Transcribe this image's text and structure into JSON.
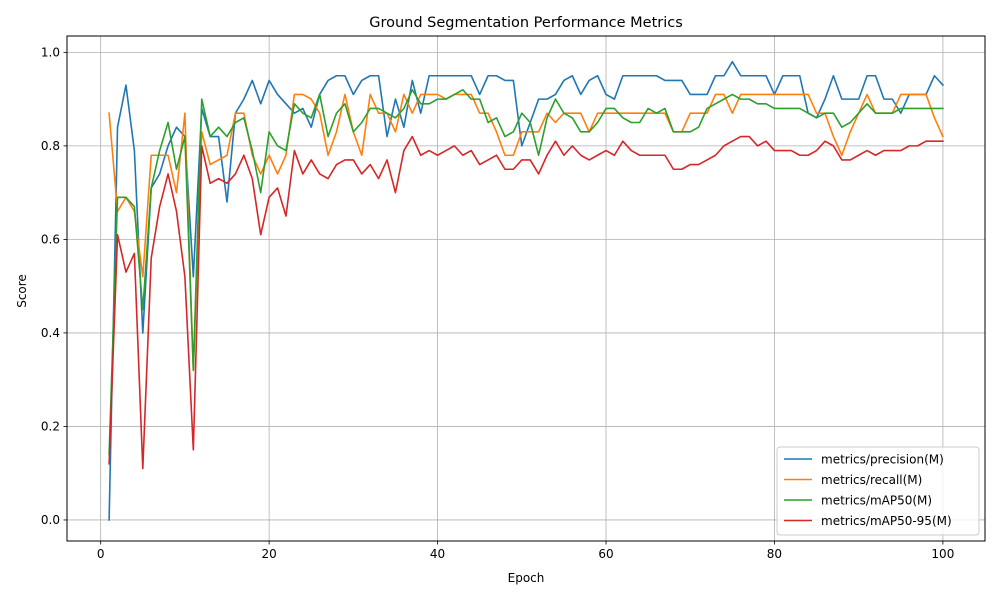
{
  "chart_data": {
    "type": "line",
    "title": "Ground Segmentation Performance Metrics",
    "xlabel": "Epoch",
    "ylabel": "Score",
    "xlim": [
      -4,
      105
    ],
    "ylim": [
      -0.045,
      1.035
    ],
    "xticks": [
      0,
      20,
      40,
      60,
      80,
      100
    ],
    "yticks": [
      0.0,
      0.2,
      0.4,
      0.6,
      0.8,
      1.0
    ],
    "xtick_labels": [
      "0",
      "20",
      "40",
      "60",
      "80",
      "100"
    ],
    "ytick_labels": [
      "0.0",
      "0.2",
      "0.4",
      "0.6",
      "0.8",
      "1.0"
    ],
    "grid": true,
    "legend_position": "lower-right",
    "x": [
      1,
      2,
      3,
      4,
      5,
      6,
      7,
      8,
      9,
      10,
      11,
      12,
      13,
      14,
      15,
      16,
      17,
      18,
      19,
      20,
      21,
      22,
      23,
      24,
      25,
      26,
      27,
      28,
      29,
      30,
      31,
      32,
      33,
      34,
      35,
      36,
      37,
      38,
      39,
      40,
      41,
      42,
      43,
      44,
      45,
      46,
      47,
      48,
      49,
      50,
      51,
      52,
      53,
      54,
      55,
      56,
      57,
      58,
      59,
      60,
      61,
      62,
      63,
      64,
      65,
      66,
      67,
      68,
      69,
      70,
      71,
      72,
      73,
      74,
      75,
      76,
      77,
      78,
      79,
      80,
      81,
      82,
      83,
      84,
      85,
      86,
      87,
      88,
      89,
      90,
      91,
      92,
      93,
      94,
      95,
      96,
      97,
      98,
      99,
      100
    ],
    "series": [
      {
        "name": "metrics/precision(M)",
        "color": "#1f77b4",
        "values": [
          0.0,
          0.84,
          0.93,
          0.79,
          0.4,
          0.71,
          0.74,
          0.8,
          0.84,
          0.82,
          0.52,
          0.88,
          0.82,
          0.82,
          0.68,
          0.87,
          0.9,
          0.94,
          0.89,
          0.94,
          0.91,
          0.89,
          0.87,
          0.88,
          0.84,
          0.91,
          0.94,
          0.95,
          0.95,
          0.91,
          0.94,
          0.95,
          0.95,
          0.82,
          0.9,
          0.84,
          0.94,
          0.87,
          0.95,
          0.95,
          0.95,
          0.95,
          0.95,
          0.95,
          0.91,
          0.95,
          0.95,
          0.94,
          0.94,
          0.8,
          0.85,
          0.9,
          0.9,
          0.91,
          0.94,
          0.95,
          0.91,
          0.94,
          0.95,
          0.91,
          0.9,
          0.95,
          0.95,
          0.95,
          0.95,
          0.95,
          0.94,
          0.94,
          0.94,
          0.91,
          0.91,
          0.91,
          0.95,
          0.95,
          0.98,
          0.95,
          0.95,
          0.95,
          0.95,
          0.91,
          0.95,
          0.95,
          0.95,
          0.87,
          0.86,
          0.9,
          0.95,
          0.9,
          0.9,
          0.9,
          0.95,
          0.95,
          0.9,
          0.9,
          0.87,
          0.91,
          0.91,
          0.91,
          0.95,
          0.93
        ]
      },
      {
        "name": "metrics/recall(M)",
        "color": "#ff7f0e",
        "values": [
          0.87,
          0.66,
          0.69,
          0.66,
          0.52,
          0.78,
          0.78,
          0.78,
          0.7,
          0.87,
          0.32,
          0.83,
          0.76,
          0.77,
          0.78,
          0.87,
          0.87,
          0.78,
          0.74,
          0.78,
          0.74,
          0.78,
          0.91,
          0.91,
          0.9,
          0.87,
          0.78,
          0.83,
          0.91,
          0.83,
          0.78,
          0.91,
          0.87,
          0.87,
          0.83,
          0.91,
          0.87,
          0.91,
          0.91,
          0.91,
          0.9,
          0.91,
          0.91,
          0.91,
          0.87,
          0.87,
          0.83,
          0.78,
          0.78,
          0.83,
          0.83,
          0.83,
          0.87,
          0.85,
          0.87,
          0.87,
          0.87,
          0.83,
          0.87,
          0.87,
          0.87,
          0.87,
          0.87,
          0.87,
          0.87,
          0.87,
          0.87,
          0.83,
          0.83,
          0.87,
          0.87,
          0.87,
          0.91,
          0.91,
          0.87,
          0.91,
          0.91,
          0.91,
          0.91,
          0.91,
          0.91,
          0.91,
          0.91,
          0.91,
          0.87,
          0.87,
          0.82,
          0.78,
          0.83,
          0.87,
          0.91,
          0.87,
          0.87,
          0.87,
          0.91,
          0.91,
          0.91,
          0.91,
          0.86,
          0.82
        ]
      },
      {
        "name": "metrics/mAP50(M)",
        "color": "#2ca02c",
        "values": [
          0.14,
          0.69,
          0.69,
          0.67,
          0.45,
          0.71,
          0.79,
          0.85,
          0.75,
          0.82,
          0.32,
          0.9,
          0.82,
          0.84,
          0.82,
          0.85,
          0.86,
          0.79,
          0.7,
          0.83,
          0.8,
          0.79,
          0.89,
          0.87,
          0.86,
          0.91,
          0.82,
          0.87,
          0.89,
          0.83,
          0.85,
          0.88,
          0.88,
          0.87,
          0.86,
          0.88,
          0.92,
          0.89,
          0.89,
          0.9,
          0.9,
          0.91,
          0.92,
          0.9,
          0.9,
          0.85,
          0.86,
          0.82,
          0.83,
          0.87,
          0.85,
          0.78,
          0.86,
          0.9,
          0.87,
          0.86,
          0.83,
          0.83,
          0.85,
          0.88,
          0.88,
          0.86,
          0.85,
          0.85,
          0.88,
          0.87,
          0.88,
          0.83,
          0.83,
          0.83,
          0.84,
          0.88,
          0.89,
          0.9,
          0.91,
          0.9,
          0.9,
          0.89,
          0.89,
          0.88,
          0.88,
          0.88,
          0.88,
          0.87,
          0.86,
          0.87,
          0.87,
          0.84,
          0.85,
          0.87,
          0.89,
          0.87,
          0.87,
          0.87,
          0.88,
          0.88,
          0.88,
          0.88,
          0.88,
          0.88
        ]
      },
      {
        "name": "metrics/mAP50-95(M)",
        "color": "#d62728",
        "values": [
          0.12,
          0.61,
          0.53,
          0.57,
          0.11,
          0.56,
          0.67,
          0.74,
          0.66,
          0.52,
          0.15,
          0.8,
          0.72,
          0.73,
          0.72,
          0.74,
          0.78,
          0.73,
          0.61,
          0.69,
          0.71,
          0.65,
          0.79,
          0.74,
          0.77,
          0.74,
          0.73,
          0.76,
          0.77,
          0.77,
          0.74,
          0.76,
          0.73,
          0.77,
          0.7,
          0.79,
          0.82,
          0.78,
          0.79,
          0.78,
          0.79,
          0.8,
          0.78,
          0.79,
          0.76,
          0.77,
          0.78,
          0.75,
          0.75,
          0.77,
          0.77,
          0.74,
          0.78,
          0.81,
          0.78,
          0.8,
          0.78,
          0.77,
          0.78,
          0.79,
          0.78,
          0.81,
          0.79,
          0.78,
          0.78,
          0.78,
          0.78,
          0.75,
          0.75,
          0.76,
          0.76,
          0.77,
          0.78,
          0.8,
          0.81,
          0.82,
          0.82,
          0.8,
          0.81,
          0.79,
          0.79,
          0.79,
          0.78,
          0.78,
          0.79,
          0.81,
          0.8,
          0.77,
          0.77,
          0.78,
          0.79,
          0.78,
          0.79,
          0.79,
          0.79,
          0.8,
          0.8,
          0.81,
          0.81,
          0.81
        ]
      }
    ]
  }
}
